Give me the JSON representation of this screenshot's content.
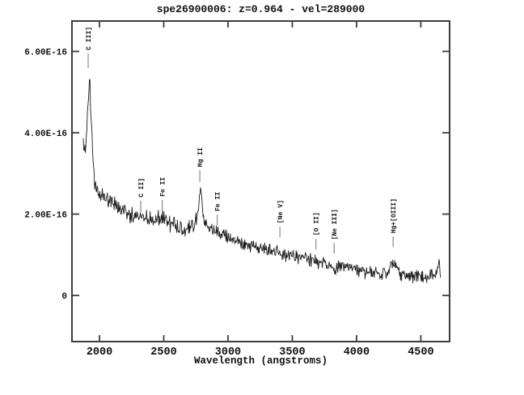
{
  "window": {
    "background": "#ffffff"
  },
  "chart_data": {
    "type": "line",
    "title": "spe26900006: z=0.964 - vel=289000",
    "xlabel": "Wavelength (angstroms)",
    "ylabel": "",
    "grid": false,
    "legend": null,
    "xlim": [
      1786,
      4724
    ],
    "ylim_flux_1e16": [
      -1.134,
      6.746
    ],
    "x_ticks": [
      2000,
      2500,
      3000,
      3500,
      4000,
      4500
    ],
    "y_ticks": [
      {
        "value": 0.0,
        "label": "0"
      },
      {
        "value": 2.0,
        "label": "2.00E-16"
      },
      {
        "value": 4.0,
        "label": "4.00E-16"
      },
      {
        "value": 6.0,
        "label": "6.00E-16"
      }
    ],
    "colors": {
      "frame": "#3d3d3d",
      "trace": "#1c1c1c",
      "annotation_tick": "#9b9b9b",
      "text": "#111111",
      "background": "#ffffff"
    },
    "series": [
      {
        "name": "spectrum",
        "flux_unit_scale": 1e-16,
        "sample_step_angstrom": 4,
        "anchors_lambda_flux": [
          [
            1874,
            3.84
          ],
          [
            1880,
            3.5
          ],
          [
            1886,
            3.75
          ],
          [
            1892,
            3.6
          ],
          [
            1898,
            4.05
          ],
          [
            1904,
            4.1
          ],
          [
            1910,
            4.55
          ],
          [
            1916,
            4.9
          ],
          [
            1924,
            5.41
          ],
          [
            1930,
            4.8
          ],
          [
            1937,
            4.28
          ],
          [
            1944,
            3.7
          ],
          [
            1950,
            3.38
          ],
          [
            1956,
            3.0
          ],
          [
            1962,
            2.79
          ],
          [
            1975,
            2.62
          ],
          [
            1990,
            2.56
          ],
          [
            2010,
            2.5
          ],
          [
            2044,
            2.43
          ],
          [
            2080,
            2.33
          ],
          [
            2139,
            2.23
          ],
          [
            2180,
            2.08
          ],
          [
            2233,
            1.97
          ],
          [
            2270,
            1.98
          ],
          [
            2308,
            1.96
          ],
          [
            2346,
            2.03
          ],
          [
            2385,
            1.9
          ],
          [
            2422,
            1.87
          ],
          [
            2455,
            1.93
          ],
          [
            2485,
            1.91
          ],
          [
            2520,
            1.83
          ],
          [
            2560,
            1.77
          ],
          [
            2610,
            1.7
          ],
          [
            2661,
            1.63
          ],
          [
            2700,
            1.66
          ],
          [
            2737,
            1.71
          ],
          [
            2768,
            2.05
          ],
          [
            2784,
            2.63
          ],
          [
            2800,
            2.13
          ],
          [
            2818,
            1.73
          ],
          [
            2845,
            1.65
          ],
          [
            2875,
            1.61
          ],
          [
            2925,
            1.55
          ],
          [
            2988,
            1.45
          ],
          [
            3040,
            1.39
          ],
          [
            3083,
            1.35
          ],
          [
            3130,
            1.28
          ],
          [
            3177,
            1.23
          ],
          [
            3225,
            1.19
          ],
          [
            3272,
            1.15
          ],
          [
            3320,
            1.11
          ],
          [
            3366,
            1.09
          ],
          [
            3415,
            1.04
          ],
          [
            3460,
            0.99
          ],
          [
            3510,
            0.95
          ],
          [
            3555,
            0.92
          ],
          [
            3600,
            0.89
          ],
          [
            3649,
            0.86
          ],
          [
            3700,
            0.82
          ],
          [
            3744,
            0.78
          ],
          [
            3790,
            0.74
          ],
          [
            3826,
            0.7
          ],
          [
            3875,
            0.68
          ],
          [
            3920,
            0.66
          ],
          [
            3970,
            0.63
          ],
          [
            4015,
            0.6
          ],
          [
            4060,
            0.58
          ],
          [
            4109,
            0.56
          ],
          [
            4150,
            0.54
          ],
          [
            4184,
            0.52
          ],
          [
            4230,
            0.55
          ],
          [
            4266,
            0.76
          ],
          [
            4292,
            0.84
          ],
          [
            4317,
            0.64
          ],
          [
            4345,
            0.55
          ],
          [
            4373,
            0.52
          ],
          [
            4410,
            0.5
          ],
          [
            4449,
            0.48
          ],
          [
            4490,
            0.45
          ],
          [
            4525,
            0.42
          ],
          [
            4560,
            0.44
          ],
          [
            4600,
            0.5
          ],
          [
            4625,
            0.55
          ],
          [
            4645,
            0.86
          ],
          [
            4657,
            0.24
          ]
        ],
        "noise_bands": [
          {
            "lambda_max": 1960,
            "sigma": 0.13
          },
          {
            "lambda_max": 2800,
            "sigma": 0.11
          },
          {
            "lambda_max": 9999,
            "sigma": 0.09
          }
        ]
      }
    ],
    "line_annotations": [
      {
        "label": "C III]",
        "lambda": 1912,
        "tick_flux_top": 5.95,
        "tick_flux_bottom": 5.59
      },
      {
        "label": "C II]",
        "lambda": 2321,
        "tick_flux_top": 2.33,
        "tick_flux_bottom": 2.05
      },
      {
        "label": "Fe II",
        "lambda": 2488,
        "tick_flux_top": 2.35,
        "tick_flux_bottom": 2.09
      },
      {
        "label": "Mg II",
        "lambda": 2781,
        "tick_flux_top": 3.08,
        "tick_flux_bottom": 2.79
      },
      {
        "label": "Fe II",
        "lambda": 2916,
        "tick_flux_top": 1.99,
        "tick_flux_bottom": 1.73
      },
      {
        "label": "[Ne V]",
        "lambda": 3404,
        "tick_flux_top": 1.69,
        "tick_flux_bottom": 1.43
      },
      {
        "label": "[O II]",
        "lambda": 3684,
        "tick_flux_top": 1.39,
        "tick_flux_bottom": 1.13
      },
      {
        "label": "[Ne III]",
        "lambda": 3826,
        "tick_flux_top": 1.29,
        "tick_flux_bottom": 1.03
      },
      {
        "label": "Hg+[OIII]",
        "lambda": 4285,
        "tick_flux_top": 1.45,
        "tick_flux_bottom": 1.19
      }
    ]
  }
}
